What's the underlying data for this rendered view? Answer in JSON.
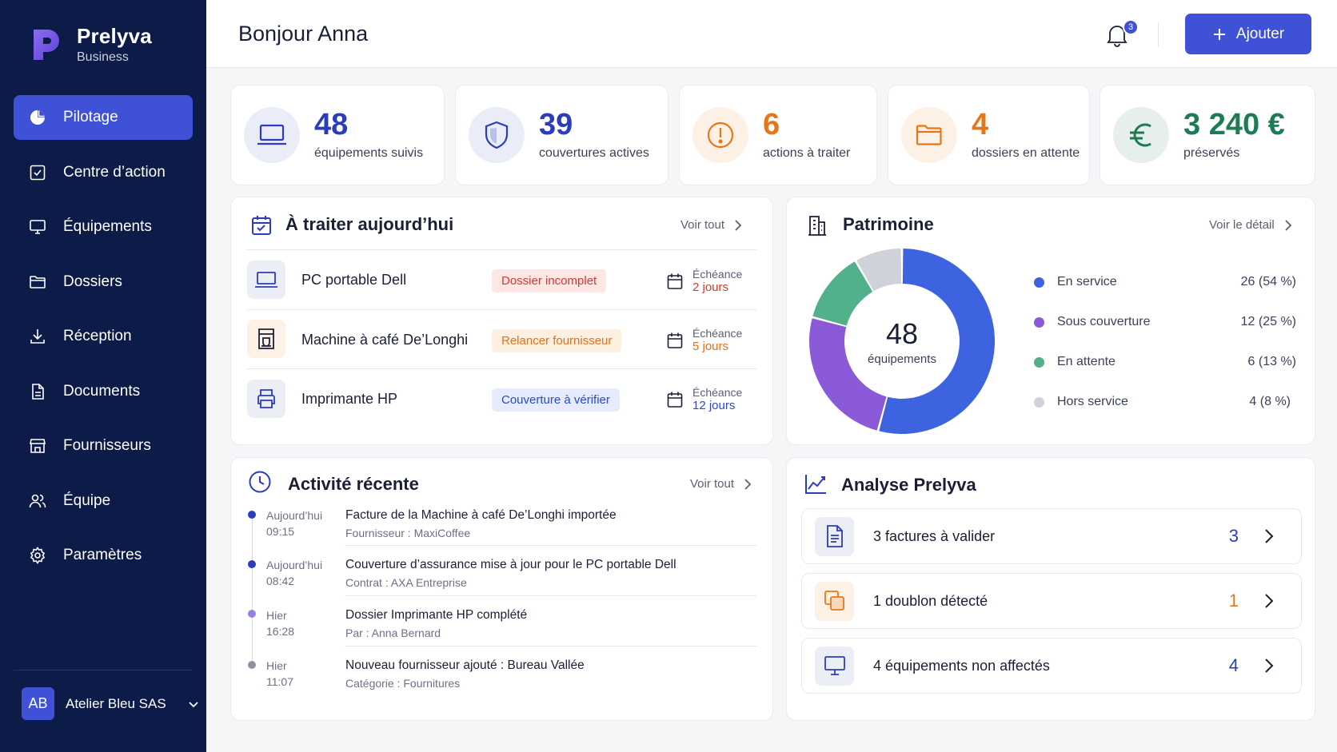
{
  "brand": {
    "name": "Prelyva",
    "sub": "Business"
  },
  "nav": [
    {
      "label": "Pilotage",
      "icon": "pie-chart-icon",
      "active": true
    },
    {
      "label": "Centre d’action",
      "icon": "checkbox-icon"
    },
    {
      "label": "Équipements",
      "icon": "monitor-icon"
    },
    {
      "label": "Dossiers",
      "icon": "folder-icon"
    },
    {
      "label": "Réception",
      "icon": "download-icon"
    },
    {
      "label": "Documents",
      "icon": "document-icon"
    },
    {
      "label": "Fournisseurs",
      "icon": "store-icon"
    },
    {
      "label": "Équipe",
      "icon": "team-icon"
    },
    {
      "label": "Paramètres",
      "icon": "gear-icon"
    }
  ],
  "account": {
    "initials": "AB",
    "name": "Atelier Bleu SAS"
  },
  "header": {
    "greeting": "Bonjour Anna",
    "notif_count": "3",
    "add_label": "Ajouter"
  },
  "kpis": [
    {
      "value": "48",
      "label": "équipements suivis",
      "icon": "laptop-icon",
      "color": "#2b3dbb"
    },
    {
      "value": "39",
      "label": "couvertures actives",
      "icon": "shield-icon",
      "color": "#2b3dbb"
    },
    {
      "value": "6",
      "label": "actions à traiter",
      "icon": "alert-icon",
      "color": "#e5771a"
    },
    {
      "value": "4",
      "label": "dossiers en attente",
      "icon": "folder-icon",
      "color": "#e5771a"
    },
    {
      "value": "3 240 €",
      "label": "préservés",
      "icon": "euro-icon",
      "color": "#1e7b53"
    }
  ],
  "today": {
    "title": "À traiter aujourd’hui",
    "link": "Voir tout",
    "due_label": "Échéance",
    "items": [
      {
        "name": "PC portable Dell",
        "status": "Dossier incomplet",
        "due": "2 jours",
        "icon": "laptop-icon"
      },
      {
        "name": "Machine à café De’Longhi",
        "status": "Relancer fournisseur",
        "due": "5 jours",
        "icon": "coffee-machine-icon"
      },
      {
        "name": "Imprimante HP",
        "status": "Couverture à vérifier",
        "due": "12 jours",
        "icon": "printer-icon"
      }
    ]
  },
  "patrimoine": {
    "title": "Patrimoine",
    "link": "Voir le détail",
    "center_value": "48",
    "center_label": "équipements",
    "legend": [
      {
        "label": "En service",
        "value": "26 (54 %)",
        "color": "#3e63e0"
      },
      {
        "label": "Sous couverture",
        "value": "12 (25 %)",
        "color": "#8a5ad8"
      },
      {
        "label": "En attente",
        "value": "6 (13 %)",
        "color": "#52b08a"
      },
      {
        "label": "Hors service",
        "value": "4 (8 %)",
        "color": "#cfd2d9"
      }
    ]
  },
  "chart_data": {
    "type": "pie",
    "categories": [
      "En service",
      "Sous couverture",
      "En attente",
      "Hors service"
    ],
    "values": [
      26,
      12,
      6,
      4
    ],
    "colors": [
      "#3e63e0",
      "#8a5ad8",
      "#52b08a",
      "#cfd2d9"
    ],
    "title": "Patrimoine"
  },
  "activity": {
    "title": "Activité récente",
    "link": "Voir tout",
    "items": [
      {
        "day": "Aujourd’hui",
        "time": "09:15",
        "text": "Facture de la Machine à café De’Longhi importée",
        "sub": "Fournisseur : MaxiCoffee",
        "dot": "#2b3dbb"
      },
      {
        "day": "Aujourd’hui",
        "time": "08:42",
        "text": "Couverture d’assurance mise à jour pour le PC portable Dell",
        "sub": "Contrat : AXA Entreprise",
        "dot": "#2b3dbb"
      },
      {
        "day": "Hier",
        "time": "16:28",
        "text": "Dossier Imprimante HP complété",
        "sub": "Par : Anna Bernard",
        "dot": "#9b7fe0"
      },
      {
        "day": "Hier",
        "time": "11:07",
        "text": "Nouveau fournisseur ajouté : Bureau Vallée",
        "sub": "Catégorie : Fournitures",
        "dot": "#8d91a0"
      }
    ]
  },
  "analysis": {
    "title": "Analyse Prelyva",
    "items": [
      {
        "count": "3",
        "label": "factures à valider",
        "icon": "invoice-icon",
        "color": "#2b3dbb"
      },
      {
        "count": "1",
        "label": "doublon détecté",
        "icon": "duplicate-icon",
        "color": "#e5771a"
      },
      {
        "count": "4",
        "label": "équipements non affectés",
        "icon": "monitor-icon",
        "color": "#2b3dbb"
      }
    ]
  }
}
